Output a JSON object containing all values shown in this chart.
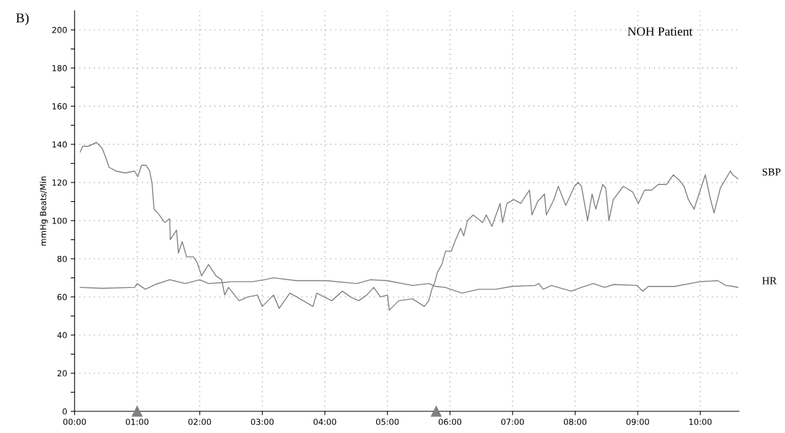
{
  "chart_data": {
    "type": "line",
    "title": "NOH Patient",
    "ylabel": "mmHg Beats/Min",
    "annotations": [
      "B)"
    ],
    "xlim": [
      0,
      10.62
    ],
    "ylim": [
      0,
      210
    ],
    "xticks": [
      {
        "value": 0,
        "label": "00:00"
      },
      {
        "value": 1,
        "label": "01:00"
      },
      {
        "value": 2,
        "label": "02:00"
      },
      {
        "value": 3,
        "label": "03:00"
      },
      {
        "value": 4,
        "label": "04:00"
      },
      {
        "value": 5,
        "label": "05:00"
      },
      {
        "value": 6,
        "label": "06:00"
      },
      {
        "value": 7,
        "label": "07:00"
      },
      {
        "value": 8,
        "label": "08:00"
      },
      {
        "value": 9,
        "label": "09:00"
      },
      {
        "value": 10,
        "label": "10:00"
      }
    ],
    "yticks": [
      0,
      {
        "value": 10,
        "label": null
      },
      20,
      {
        "value": 30,
        "label": null
      },
      40,
      {
        "value": 50,
        "label": null
      },
      60,
      {
        "value": 70,
        "label": null
      },
      80,
      {
        "value": 90,
        "label": null
      },
      100,
      {
        "value": 110,
        "label": null
      },
      120,
      {
        "value": 130,
        "label": null
      },
      140,
      {
        "value": 150,
        "label": null
      },
      160,
      {
        "value": 170,
        "label": null
      },
      180,
      {
        "value": 190,
        "label": null
      },
      200
    ],
    "grid": true,
    "legend": false,
    "marker": "none",
    "line_style": "solid",
    "series": [
      {
        "type": "scatter",
        "marker": "triangle",
        "color": "#808080",
        "x": [
          1,
          5.78
        ],
        "values": [
          0,
          0
        ]
      },
      {
        "name": "SBP",
        "color": "#808080",
        "x": [
          0.09,
          0.13,
          0.22,
          0.35,
          0.44,
          0.5,
          0.55,
          0.66,
          0.81,
          0.96,
          1.01,
          1.07,
          1.14,
          1.2,
          1.24,
          1.27,
          1.33,
          1.44,
          1.52,
          1.53,
          1.63,
          1.66,
          1.72,
          1.79,
          1.9,
          1.96,
          2.03,
          2.14,
          2.26,
          2.35,
          2.4,
          2.46,
          2.63,
          2.77,
          2.92,
          3.0,
          3.18,
          3.27,
          3.44,
          3.55,
          3.81,
          3.87,
          4.11,
          4.28,
          4.41,
          4.54,
          4.67,
          4.78,
          4.89,
          5.0,
          5.03,
          5.18,
          5.4,
          5.59,
          5.66,
          5.71,
          5.76,
          5.8,
          5.87,
          5.93,
          6.02,
          6.09,
          6.17,
          6.22,
          6.28,
          6.37,
          6.52,
          6.58,
          6.67,
          6.8,
          6.84,
          6.91,
          7.02,
          7.13,
          7.27,
          7.31,
          7.4,
          7.51,
          7.54,
          7.66,
          7.73,
          7.85,
          7.99,
          8.05,
          8.1,
          8.2,
          8.27,
          8.33,
          8.44,
          8.49,
          8.54,
          8.61,
          8.77,
          8.92,
          9.01,
          9.11,
          9.22,
          9.33,
          9.46,
          9.57,
          9.67,
          9.74,
          9.81,
          9.9,
          10.0,
          10.08,
          10.15,
          10.22,
          10.32,
          10.41,
          10.48,
          10.52,
          10.6
        ],
        "values": [
          136,
          139,
          139,
          141,
          138,
          133,
          128,
          126,
          125,
          126,
          123,
          129,
          129,
          126,
          119,
          106,
          104,
          99,
          101,
          90,
          95,
          83,
          89,
          81,
          81,
          78,
          71,
          77,
          71,
          69,
          61,
          65,
          58,
          60,
          61,
          55,
          61,
          54,
          62,
          60,
          55,
          62,
          58,
          63,
          60,
          58,
          61,
          65,
          60,
          61,
          53,
          58,
          59,
          55,
          58,
          64,
          68,
          73,
          77,
          84,
          84,
          90,
          96,
          92,
          100,
          103,
          99,
          103,
          97,
          109,
          99,
          109,
          111,
          109,
          116,
          103,
          110,
          114,
          103,
          111,
          118,
          108,
          118,
          120,
          118,
          100,
          114,
          106,
          119,
          117,
          100,
          111,
          118,
          115,
          109,
          116,
          116,
          119,
          119,
          124,
          121,
          118,
          111,
          106,
          116,
          124,
          113,
          104,
          117,
          122,
          126,
          124,
          122
        ]
      },
      {
        "name": "HR",
        "color": "#808080",
        "x": [
          0.09,
          0.44,
          0.96,
          1.0,
          1.13,
          1.29,
          1.52,
          1.77,
          2.0,
          2.14,
          2.37,
          2.51,
          2.85,
          3.03,
          3.18,
          3.55,
          4.03,
          4.51,
          4.73,
          5.0,
          5.4,
          5.66,
          5.77,
          5.92,
          6.19,
          6.46,
          6.73,
          6.99,
          7.36,
          7.42,
          7.49,
          7.62,
          7.94,
          8.1,
          8.29,
          8.47,
          8.62,
          8.99,
          9.08,
          9.17,
          9.59,
          10.0,
          10.28,
          10.41,
          10.52,
          10.6
        ],
        "values": [
          65,
          64.5,
          65,
          67,
          64,
          66.5,
          69,
          67,
          69,
          67,
          67.5,
          68,
          68,
          69,
          70,
          68.5,
          68.5,
          67,
          69,
          68.5,
          66,
          67,
          65.5,
          65,
          62,
          64,
          64,
          65.5,
          66,
          67,
          64,
          66,
          63,
          65,
          67,
          65,
          66.5,
          66,
          63,
          65.5,
          65.5,
          68,
          68.5,
          66,
          65.5,
          65
        ]
      }
    ]
  }
}
